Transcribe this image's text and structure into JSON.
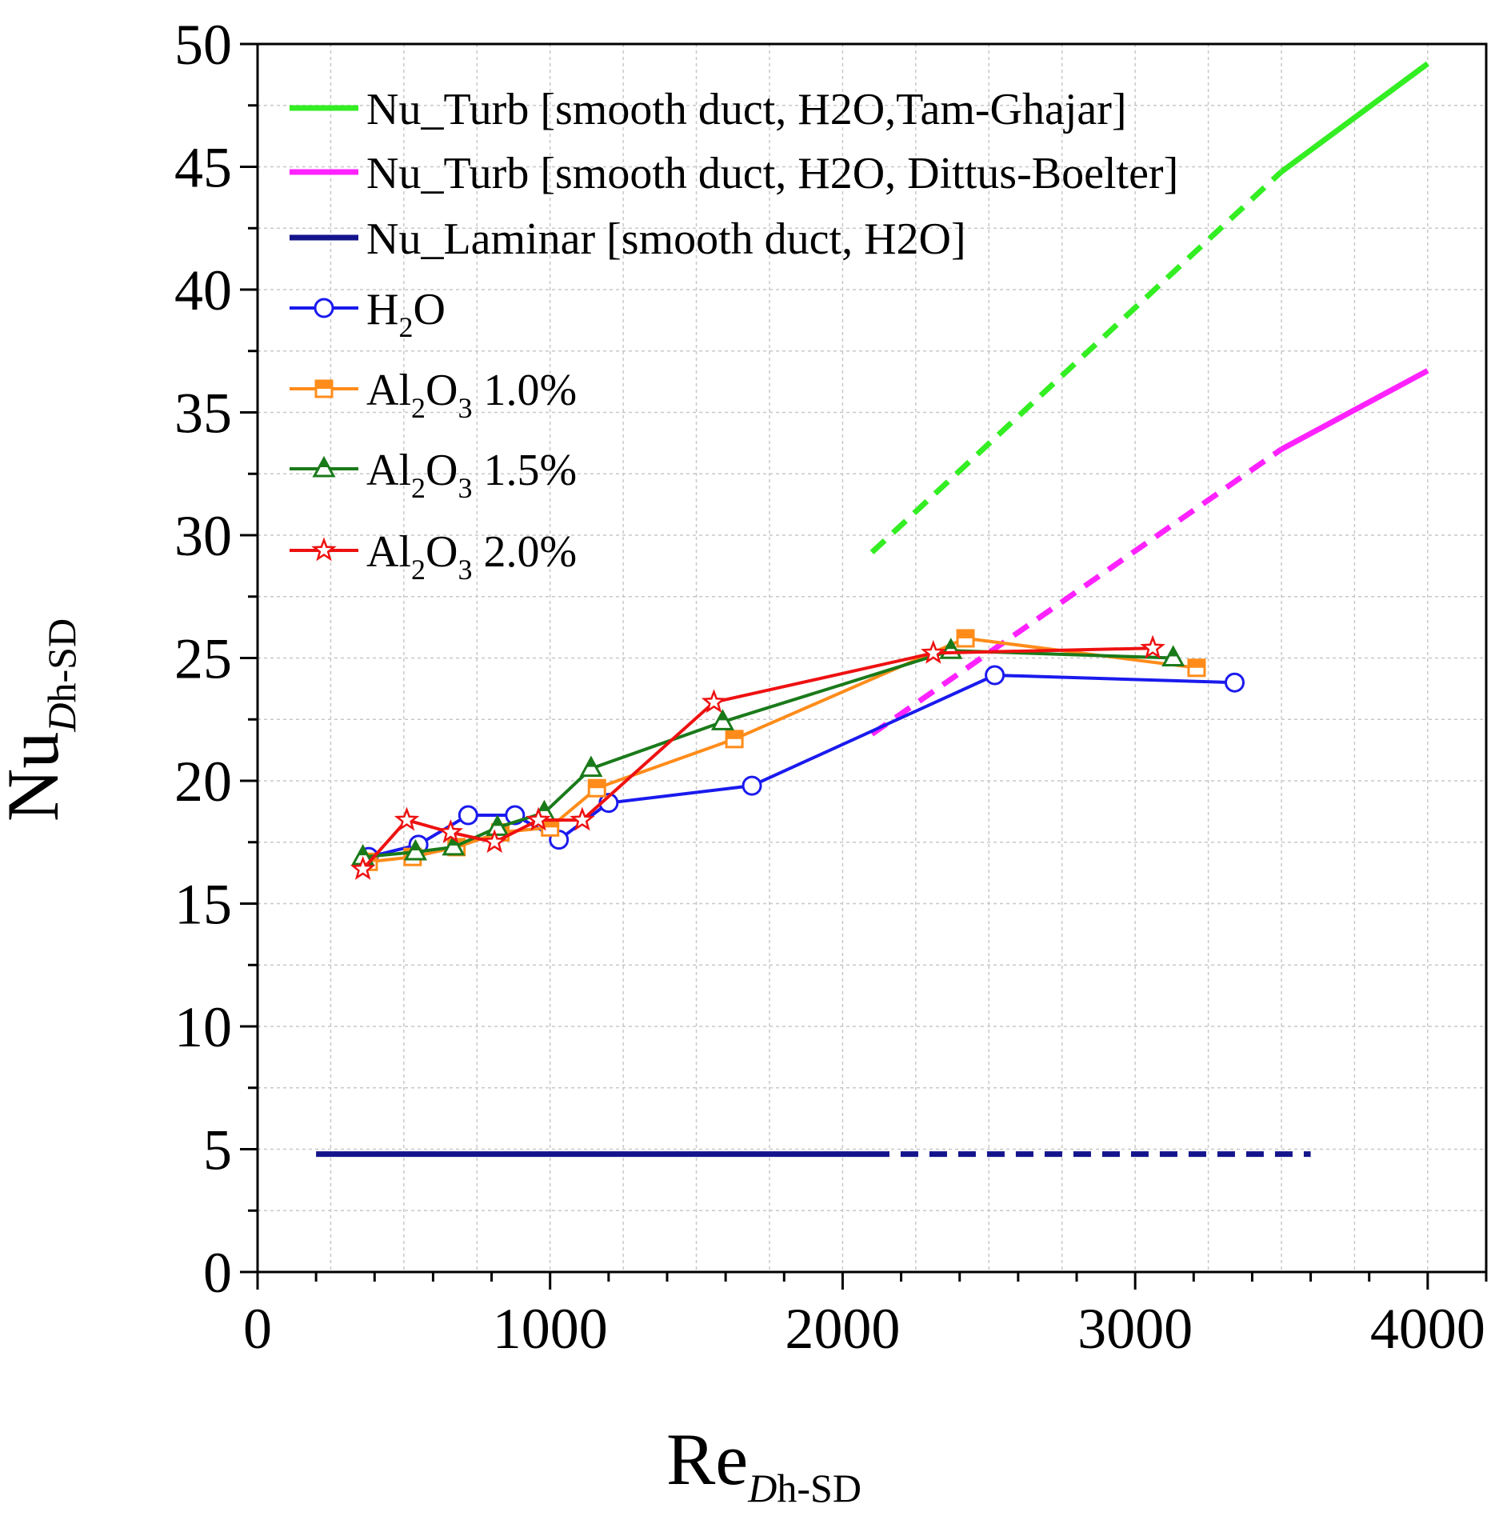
{
  "chart_data": {
    "type": "line",
    "xlabel": {
      "main": "Re",
      "sub_italic": "D",
      "sub_rest": "h-SD"
    },
    "ylabel": {
      "main": "Nu",
      "sub_italic": "D",
      "sub_rest": "h-SD"
    },
    "xlim": [
      0,
      4200
    ],
    "ylim": [
      0,
      50
    ],
    "x_ticks": [
      0,
      1000,
      2000,
      3000,
      4000
    ],
    "x_tick_labels": [
      "0",
      "1000",
      "2000",
      "3000",
      "4000"
    ],
    "y_ticks": [
      0,
      5,
      10,
      15,
      20,
      25,
      30,
      35,
      40,
      45,
      50
    ],
    "y_tick_labels": [
      "0",
      "5",
      "10",
      "15",
      "20",
      "25",
      "30",
      "35",
      "40",
      "45",
      "50"
    ],
    "grid": true,
    "legend_position": "top-left",
    "series": [
      {
        "id": "tam",
        "name": "Nu_Turb [smooth duct, H2O,Tam-Ghajar]",
        "color": "#33ee22",
        "style": "correlation",
        "x": [
          2100,
          3500,
          4000
        ],
        "y": [
          29.3,
          44.8,
          49.2
        ],
        "dashed_until_x": 3500
      },
      {
        "id": "dittus",
        "name": "Nu_Turb [smooth duct, H2O, Dittus-Boelter]",
        "color": "#ff22ff",
        "style": "correlation",
        "x": [
          2100,
          3500,
          4000
        ],
        "y": [
          21.9,
          33.5,
          36.7
        ],
        "dashed_until_x": 3500
      },
      {
        "id": "laminar",
        "name": "Nu_Laminar [smooth duct, H2O]",
        "color": "#14148c",
        "style": "correlation",
        "x": [
          200,
          2160,
          3600
        ],
        "y": [
          4.8,
          4.8,
          4.8
        ],
        "solid_until_x": 2160
      },
      {
        "id": "h2o",
        "name_parts": [
          "H",
          "2",
          "O"
        ],
        "color": "#1a1aee",
        "marker": "circle",
        "x": [
          380,
          550,
          720,
          880,
          1030,
          1200,
          1690,
          2520,
          3340
        ],
        "y": [
          16.9,
          17.4,
          18.6,
          18.6,
          17.6,
          19.1,
          19.8,
          24.3,
          24.0
        ]
      },
      {
        "id": "al10",
        "name_parts": [
          "Al",
          "2",
          "O",
          "3",
          " 1.0%"
        ],
        "color": "#ff8c1a",
        "marker": "square",
        "x": [
          380,
          530,
          680,
          830,
          1000,
          1160,
          1630,
          2420,
          3210
        ],
        "y": [
          16.7,
          16.9,
          17.3,
          17.9,
          18.1,
          19.7,
          21.7,
          25.8,
          24.6
        ]
      },
      {
        "id": "al15",
        "name_parts": [
          "Al",
          "2",
          "O",
          "3",
          " 1.5%"
        ],
        "color": "#1a7a1a",
        "marker": "triangle",
        "x": [
          360,
          540,
          670,
          820,
          980,
          1140,
          1590,
          2370,
          3130
        ],
        "y": [
          16.9,
          17.1,
          17.3,
          18.1,
          18.7,
          20.5,
          22.4,
          25.3,
          25.0
        ]
      },
      {
        "id": "al20",
        "name_parts": [
          "Al",
          "2",
          "O",
          "3",
          " 2.0%"
        ],
        "color": "#ee1111",
        "marker": "star",
        "x": [
          360,
          510,
          660,
          810,
          960,
          1110,
          1560,
          2310,
          3060
        ],
        "y": [
          16.4,
          18.4,
          17.9,
          17.5,
          18.4,
          18.4,
          23.2,
          25.2,
          25.4
        ]
      }
    ]
  }
}
